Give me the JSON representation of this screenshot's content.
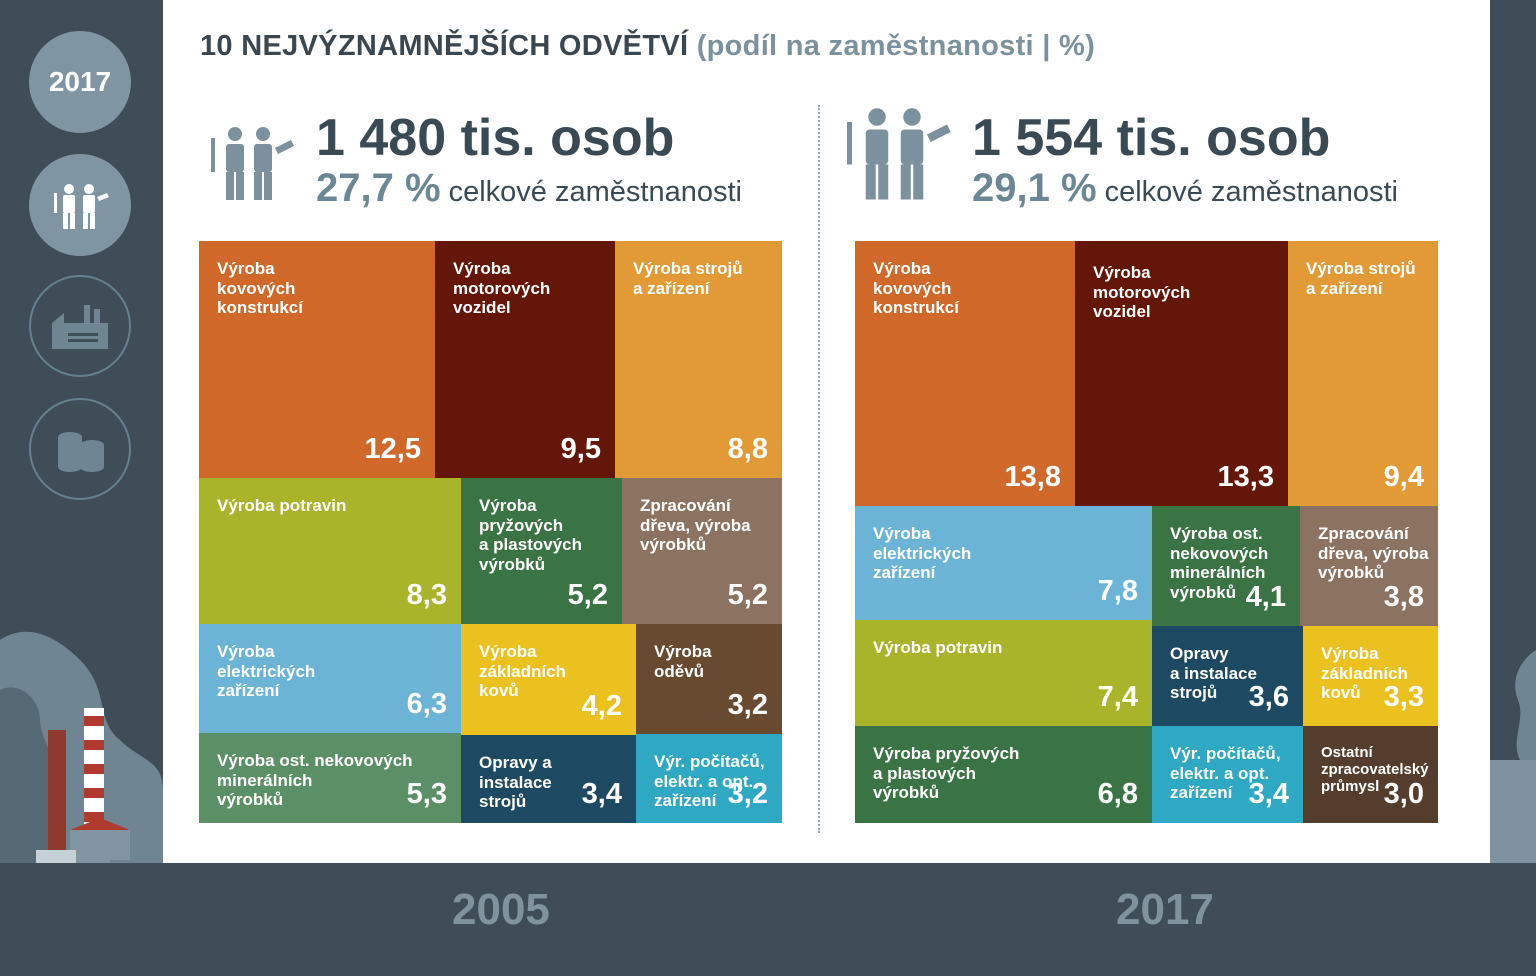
{
  "title": {
    "main": "10 NEJVÝZNAMNĚJŠÍCH ODVĚTVÍ",
    "sub": "(podíl na zaměstnanosti | %)"
  },
  "sidebar": {
    "year_badge": "2017",
    "items": [
      {
        "icon": "workers-icon",
        "active": true
      },
      {
        "icon": "factory-icon",
        "active": false
      },
      {
        "icon": "coins-icon",
        "active": false
      }
    ]
  },
  "panels": [
    {
      "persons": "1 480 tis. osob",
      "share": "27,7 %",
      "share_text": "celkové zaměstnanosti",
      "year": "2005"
    },
    {
      "persons": "1 554 tis. osob",
      "share": "29,1 %",
      "share_text": "celkové zaměstnanosti",
      "year": "2017"
    }
  ],
  "colors": {
    "kov": "#cf6828",
    "mot": "#641708",
    "stroj": "#e29a36",
    "potr": "#a9b42b",
    "pryz": "#3b7444",
    "drevo": "#8c7261",
    "elek": "#6cb4d5",
    "zakl": "#ebc11f",
    "odev": "#684a31",
    "nekov": "#5b9066",
    "opravy": "#1e4963",
    "pocit": "#2ea8c3",
    "ostatni": "#553d2e"
  },
  "chart_data": [
    {
      "type": "treemap",
      "title": "2005",
      "unit": "%",
      "items": [
        {
          "label": "Výroba\nkovových\nkonstrukcí",
          "value": "12,5",
          "color": "#cf6828"
        },
        {
          "label": "Výroba\nmotorových\nvozidel",
          "value": "9,5",
          "color": "#641708"
        },
        {
          "label": "Výroba strojů\na zařízení",
          "value": "8,8",
          "color": "#e29a36"
        },
        {
          "label": "Výroba potravin",
          "value": "8,3",
          "color": "#a9b42b"
        },
        {
          "label": "Výroba\npryžových\na plastových\nvýrobků",
          "value": "5,2",
          "color": "#3b7444"
        },
        {
          "label": "Zpracování\ndřeva, výroba\nvýrobků",
          "value": "5,2",
          "color": "#8c7261"
        },
        {
          "label": "Výroba\nelektrických\nzařízení",
          "value": "6,3",
          "color": "#6cb4d5"
        },
        {
          "label": "Výroba\nzákladních\nkovů",
          "value": "4,2",
          "color": "#ebc11f"
        },
        {
          "label": "Výroba\noděvů",
          "value": "3,2",
          "color": "#684a31"
        },
        {
          "label": "Výroba ost. nekovových\nminerálních\nvýrobků",
          "value": "5,3",
          "color": "#5b9066"
        },
        {
          "label": "Opravy a\ninstalace\nstrojů",
          "value": "3,4",
          "color": "#1e4963"
        },
        {
          "label": "Výr. počítačů,\nelektr. a opt.\nzařízení",
          "value": "3,2",
          "color": "#2ea8c3"
        }
      ]
    },
    {
      "type": "treemap",
      "title": "2017",
      "unit": "%",
      "items": [
        {
          "label": "Výroba\nkovových\nkonstrukcí",
          "value": "13,8",
          "color": "#cf6828"
        },
        {
          "label": "Výroba\nmotorových\nvozidel",
          "value": "13,3",
          "color": "#641708"
        },
        {
          "label": "Výroba strojů\na zařízení",
          "value": "9,4",
          "color": "#e29a36"
        },
        {
          "label": "Výroba\nelektrických\nzařízení",
          "value": "7,8",
          "color": "#6cb4d5"
        },
        {
          "label": "Výroba ost.\nnekovových\nminerálních\nvýrobků",
          "value": "4,1",
          "color": "#3b7444"
        },
        {
          "label": "Zpracování\ndřeva, výroba\nvýrobků",
          "value": "3,8",
          "color": "#8c7261"
        },
        {
          "label": "Výroba potravin",
          "value": "7,4",
          "color": "#a9b42b"
        },
        {
          "label": "Opravy\na instalace\nstrojů",
          "value": "3,6",
          "color": "#1e4963"
        },
        {
          "label": "Výroba\nzákladních\nkovů",
          "value": "3,3",
          "color": "#ebc11f"
        },
        {
          "label": "Výroba pryžových\na plastových\nvýrobků",
          "value": "6,8",
          "color": "#3b7444"
        },
        {
          "label": "Výr. počítačů,\nelektr. a opt.\nzařízení",
          "value": "3,4",
          "color": "#2ea8c3"
        },
        {
          "label": "Ostatní\nzpracovatelský\nprůmysl",
          "value": "3,0",
          "color": "#553d2e"
        }
      ]
    }
  ]
}
